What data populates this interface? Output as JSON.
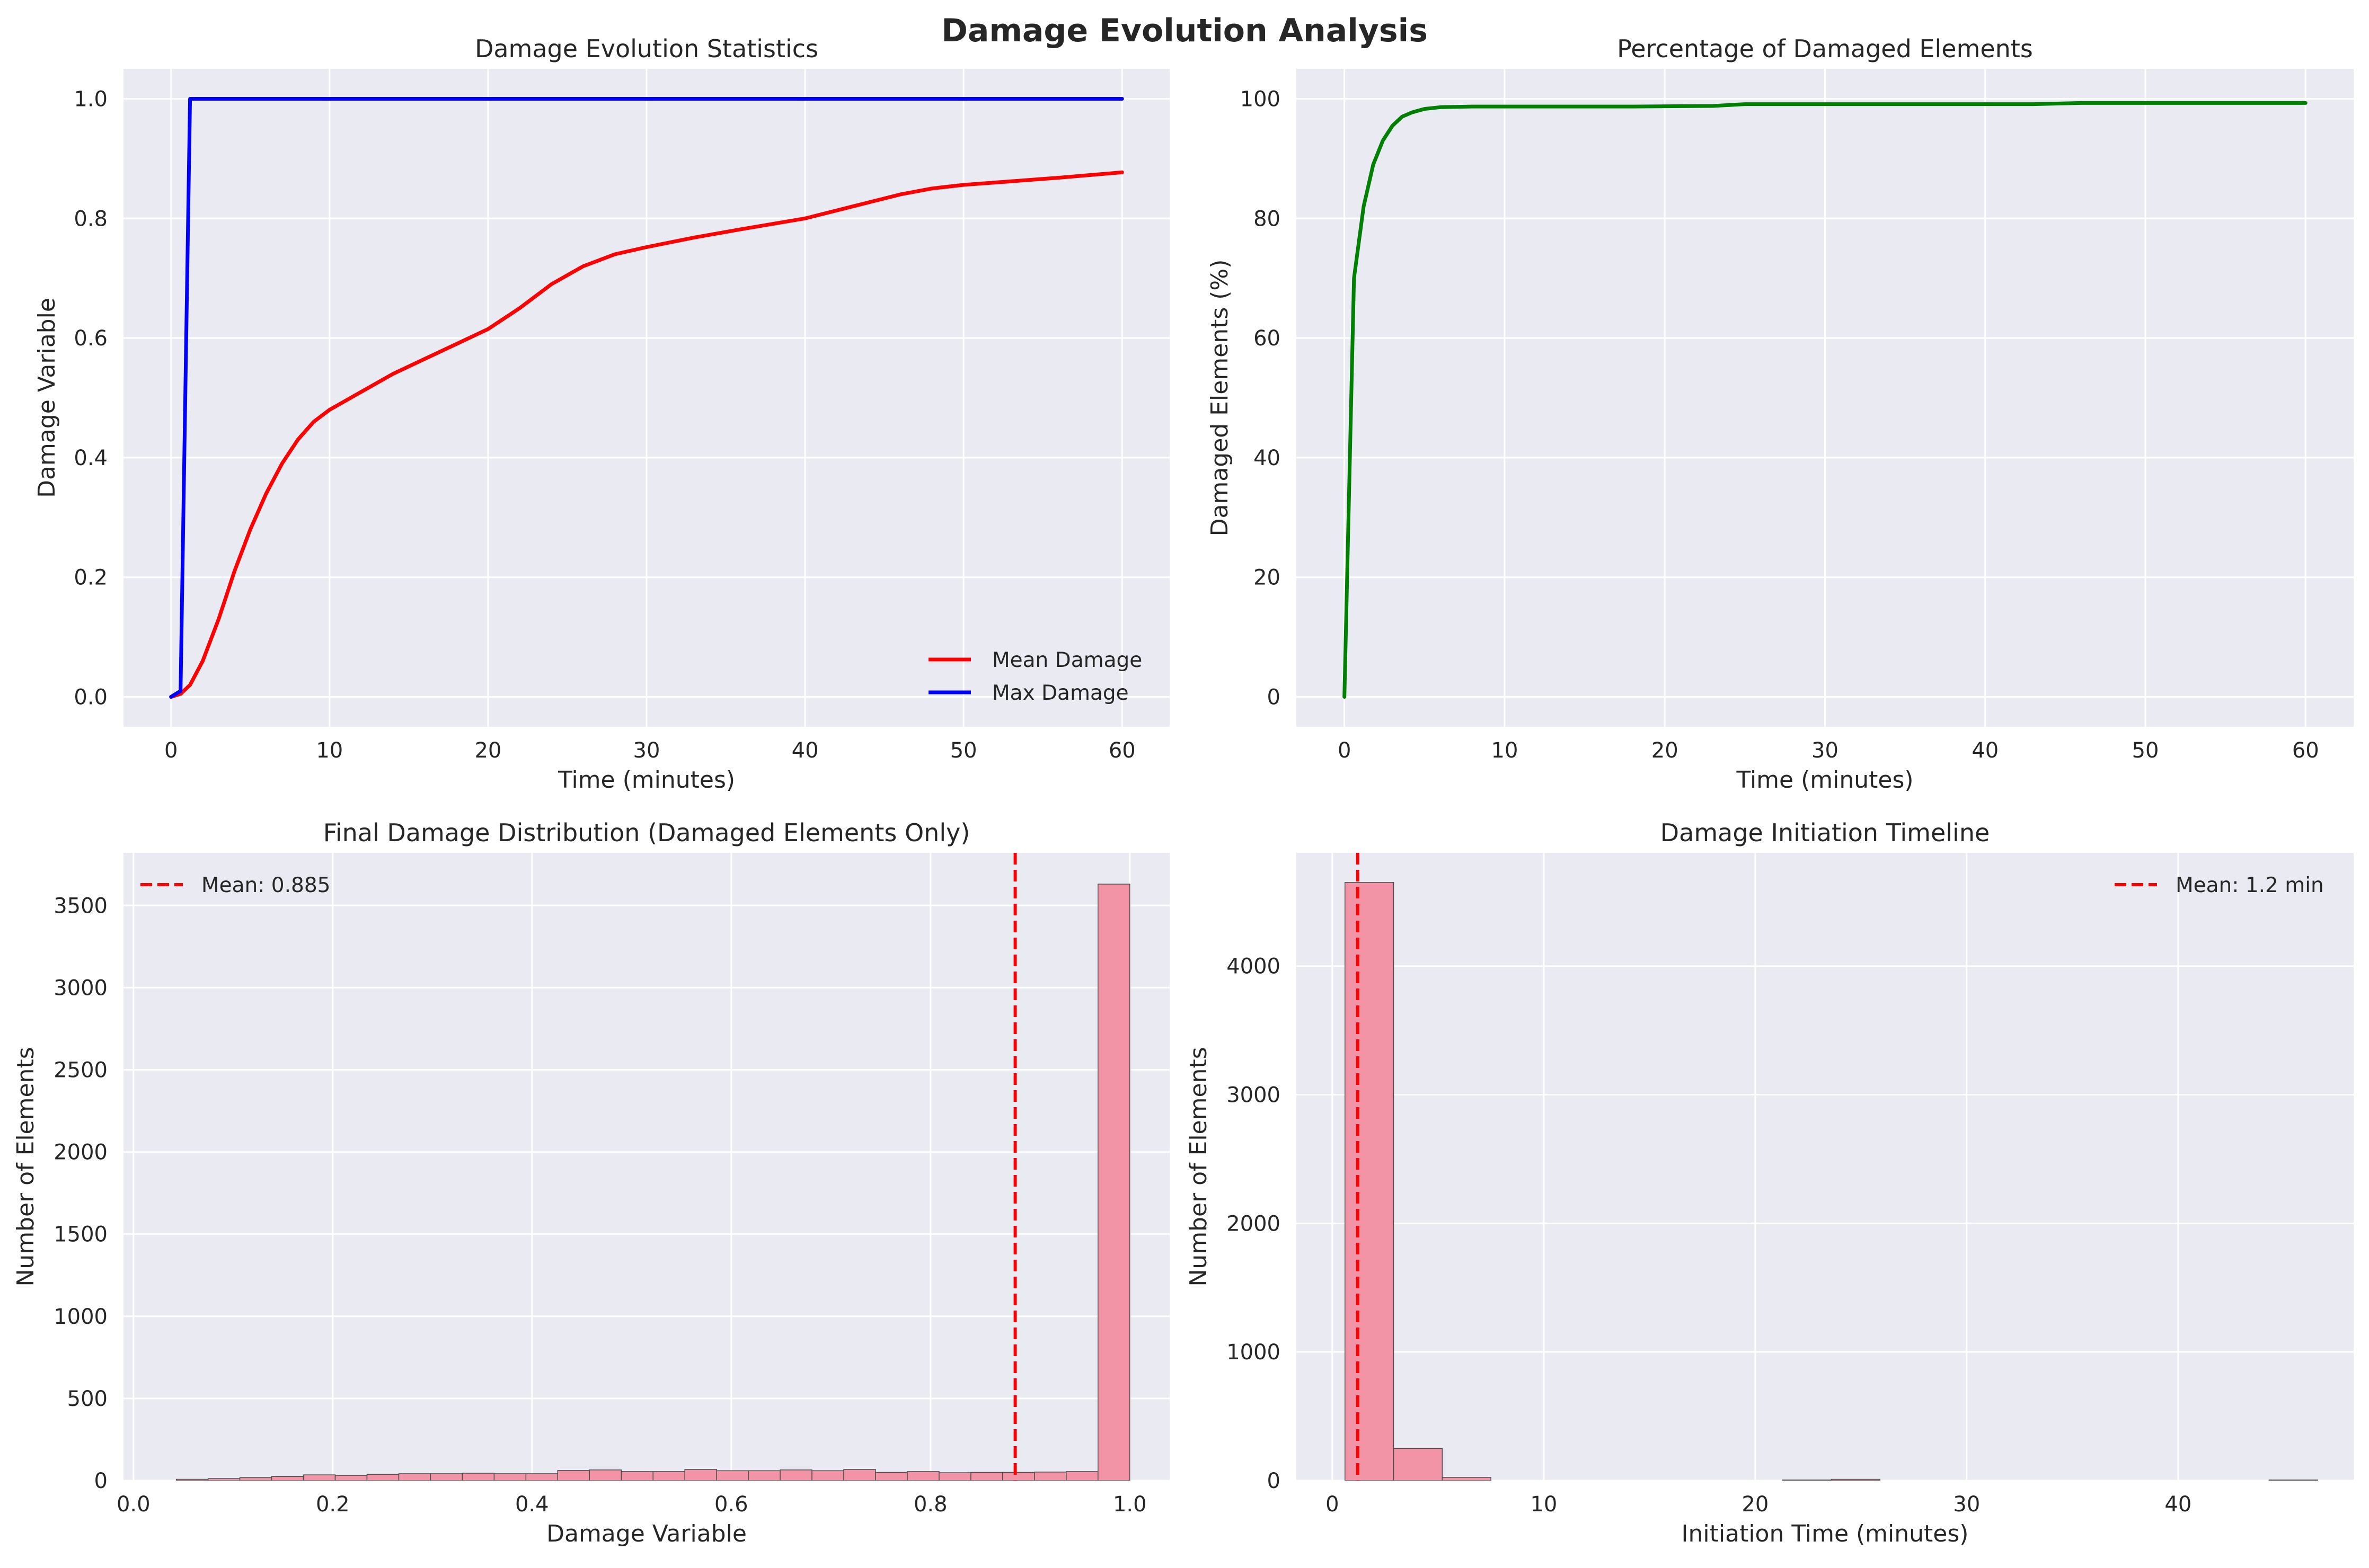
{
  "figure": {
    "suptitle": "Damage Evolution Analysis"
  },
  "colors": {
    "axes_bg": "#eaeaf2",
    "grid": "#ffffff",
    "mean_damage": "#ff0000",
    "max_damage": "#0000ff",
    "damaged_pct": "#008000",
    "hist_fill": "#f394a6",
    "hist_edge": "#4d4d4d",
    "mean_line": "#ff0000"
  },
  "chart_data": [
    {
      "id": "p1",
      "type": "line",
      "title": "Damage Evolution Statistics",
      "xlabel": "Time (minutes)",
      "ylabel": "Damage Variable",
      "xlim": [
        -3,
        63
      ],
      "ylim": [
        -0.05,
        1.05
      ],
      "xticks": [
        0,
        10,
        20,
        30,
        40,
        50,
        60
      ],
      "yticks": [
        0.0,
        0.2,
        0.4,
        0.6,
        0.8,
        1.0
      ],
      "ytick_labels": [
        "0.0",
        "0.2",
        "0.4",
        "0.6",
        "0.8",
        "1.0"
      ],
      "grid": true,
      "legend": "lower-right",
      "series": [
        {
          "name": "Mean Damage",
          "color_key": "mean_damage",
          "x": [
            0,
            0.6,
            1.2,
            2,
            3,
            4,
            5,
            6,
            7,
            8,
            9,
            10,
            12,
            14,
            16,
            18,
            20,
            22,
            24,
            26,
            28,
            30,
            33,
            36,
            40,
            43,
            46,
            48,
            50,
            53,
            56,
            60
          ],
          "y": [
            0.0,
            0.005,
            0.02,
            0.06,
            0.13,
            0.21,
            0.28,
            0.34,
            0.39,
            0.43,
            0.46,
            0.48,
            0.51,
            0.54,
            0.565,
            0.59,
            0.615,
            0.65,
            0.69,
            0.72,
            0.74,
            0.752,
            0.768,
            0.782,
            0.8,
            0.82,
            0.84,
            0.85,
            0.856,
            0.862,
            0.868,
            0.877
          ]
        },
        {
          "name": "Max Damage",
          "color_key": "max_damage",
          "x": [
            0,
            0.6,
            1.2,
            60
          ],
          "y": [
            0.0,
            0.01,
            1.0,
            1.0
          ]
        }
      ]
    },
    {
      "id": "p2",
      "type": "line",
      "title": "Percentage of Damaged Elements",
      "xlabel": "Time (minutes)",
      "ylabel": "Damaged Elements (%)",
      "xlim": [
        -3,
        63
      ],
      "ylim": [
        -5,
        105
      ],
      "xticks": [
        0,
        10,
        20,
        30,
        40,
        50,
        60
      ],
      "yticks": [
        0,
        20,
        40,
        60,
        80,
        100
      ],
      "grid": true,
      "series": [
        {
          "color_key": "damaged_pct",
          "x": [
            0,
            0.6,
            1.2,
            1.8,
            2.4,
            3,
            3.6,
            4.2,
            5,
            6,
            8,
            12,
            18,
            23,
            25,
            30,
            40,
            43,
            46,
            60
          ],
          "y": [
            0,
            70,
            82,
            89,
            93,
            95.5,
            97,
            97.7,
            98.3,
            98.6,
            98.7,
            98.7,
            98.7,
            98.8,
            99.1,
            99.1,
            99.1,
            99.1,
            99.3,
            99.3
          ]
        }
      ]
    },
    {
      "id": "p3",
      "type": "bar",
      "title": "Final Damage Distribution (Damaged Elements Only)",
      "xlabel": "Damage Variable",
      "ylabel": "Number of Elements",
      "xlim": [
        -0.01,
        1.04
      ],
      "ylim": [
        0,
        3820
      ],
      "xticks": [
        0.0,
        0.2,
        0.4,
        0.6,
        0.8,
        1.0
      ],
      "xtick_labels": [
        "0.0",
        "0.2",
        "0.4",
        "0.6",
        "0.8",
        "1.0"
      ],
      "yticks": [
        0,
        500,
        1000,
        1500,
        2000,
        2500,
        3000,
        3500
      ],
      "grid": true,
      "legend": "upper-left",
      "bin_edges": [
        0.043,
        0.0749,
        0.1068,
        0.1387,
        0.1706,
        0.2025,
        0.2344,
        0.2663,
        0.2982,
        0.3301,
        0.362,
        0.3939,
        0.4258,
        0.4577,
        0.4896,
        0.5215,
        0.5534,
        0.5853,
        0.6172,
        0.6491,
        0.681,
        0.7129,
        0.7448,
        0.7767,
        0.8086,
        0.8405,
        0.8724,
        0.9043,
        0.9362,
        0.9681,
        1.0
      ],
      "counts": [
        8,
        12,
        18,
        25,
        35,
        32,
        38,
        42,
        42,
        45,
        42,
        42,
        62,
        65,
        55,
        55,
        68,
        60,
        60,
        65,
        60,
        68,
        50,
        55,
        48,
        50,
        50,
        52,
        55,
        3630
      ],
      "mean_line": {
        "x": 0.885,
        "label": "Mean: 0.885"
      }
    },
    {
      "id": "p4",
      "type": "bar",
      "title": "Damage Initiation Timeline",
      "xlabel": "Initiation Time (minutes)",
      "ylabel": "Number of Elements",
      "xlim": [
        -1.7,
        48.3
      ],
      "ylim": [
        0,
        4880
      ],
      "xticks": [
        0,
        10,
        20,
        30,
        40
      ],
      "yticks": [
        0,
        1000,
        2000,
        3000,
        4000
      ],
      "grid": true,
      "legend": "upper-right",
      "bin_edges": [
        0.6,
        2.9,
        5.2,
        7.5,
        9.8,
        12.1,
        14.4,
        16.7,
        19.0,
        21.3,
        23.6,
        25.9,
        28.2,
        30.5,
        32.8,
        35.1,
        37.4,
        39.7,
        42.0,
        44.3,
        46.6
      ],
      "counts": [
        4650,
        250,
        25,
        0,
        0,
        0,
        0,
        0,
        0,
        5,
        10,
        0,
        0,
        0,
        0,
        0,
        0,
        0,
        0,
        5
      ],
      "mean_line": {
        "x": 1.2,
        "label": "Mean: 1.2 min"
      }
    }
  ]
}
